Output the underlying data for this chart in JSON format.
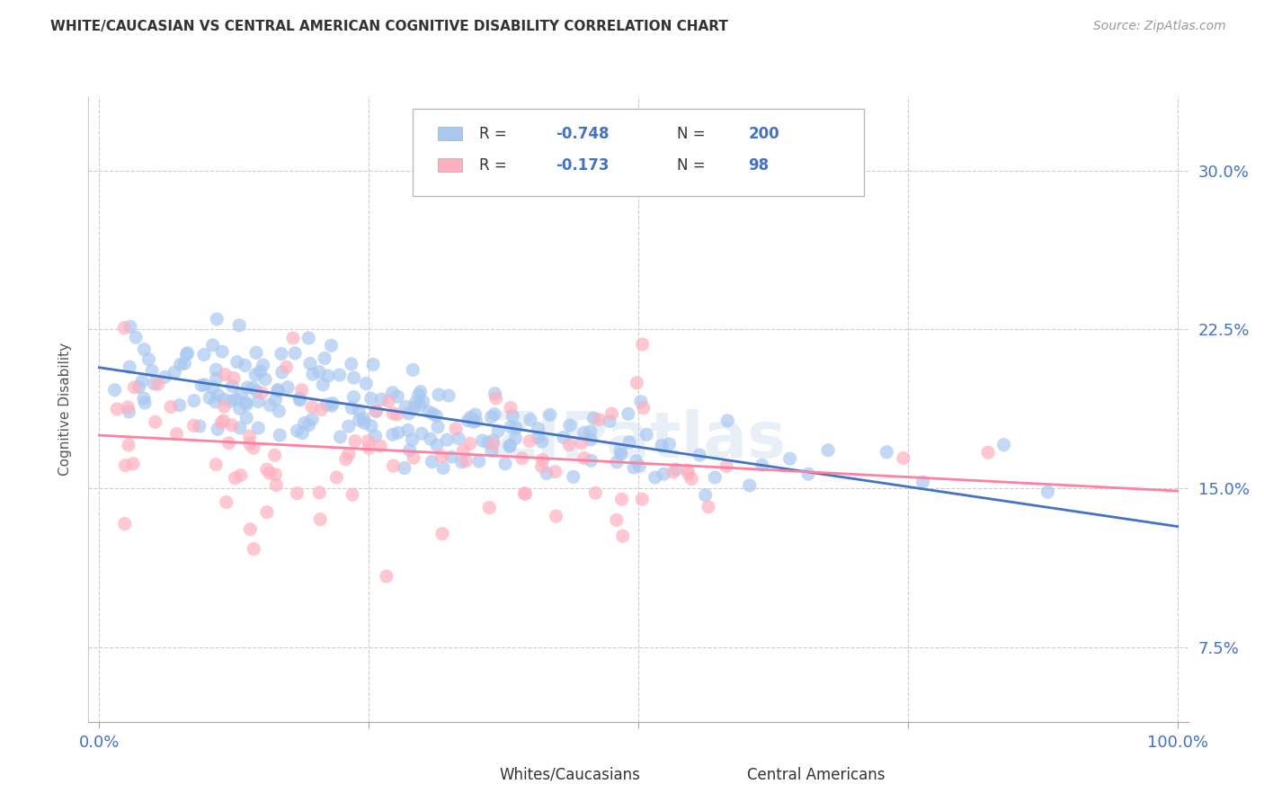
{
  "title": "WHITE/CAUCASIAN VS CENTRAL AMERICAN COGNITIVE DISABILITY CORRELATION CHART",
  "source": "Source: ZipAtlas.com",
  "ylabel": "Cognitive Disability",
  "y_tick_labels": [
    "7.5%",
    "15.0%",
    "22.5%",
    "30.0%"
  ],
  "y_ticks": [
    0.075,
    0.15,
    0.225,
    0.3
  ],
  "xlim": [
    -0.01,
    1.01
  ],
  "ylim": [
    0.04,
    0.335
  ],
  "blue_color": "#A8C8F0",
  "blue_line_color": "#4472C4",
  "pink_color": "#FFB0C0",
  "pink_line_color": "#FF80A0",
  "blue_R": -0.748,
  "blue_N": 200,
  "pink_R": -0.173,
  "pink_N": 98,
  "watermark": "ZIPatlas",
  "legend_label_blue": "Whites/Caucasians",
  "legend_label_pink": "Central Americans",
  "background_color": "#FFFFFF",
  "grid_color": "#CCCCCC",
  "tick_label_color": "#4472C4",
  "title_color": "#333333",
  "seed_blue": 42,
  "seed_pink": 7
}
